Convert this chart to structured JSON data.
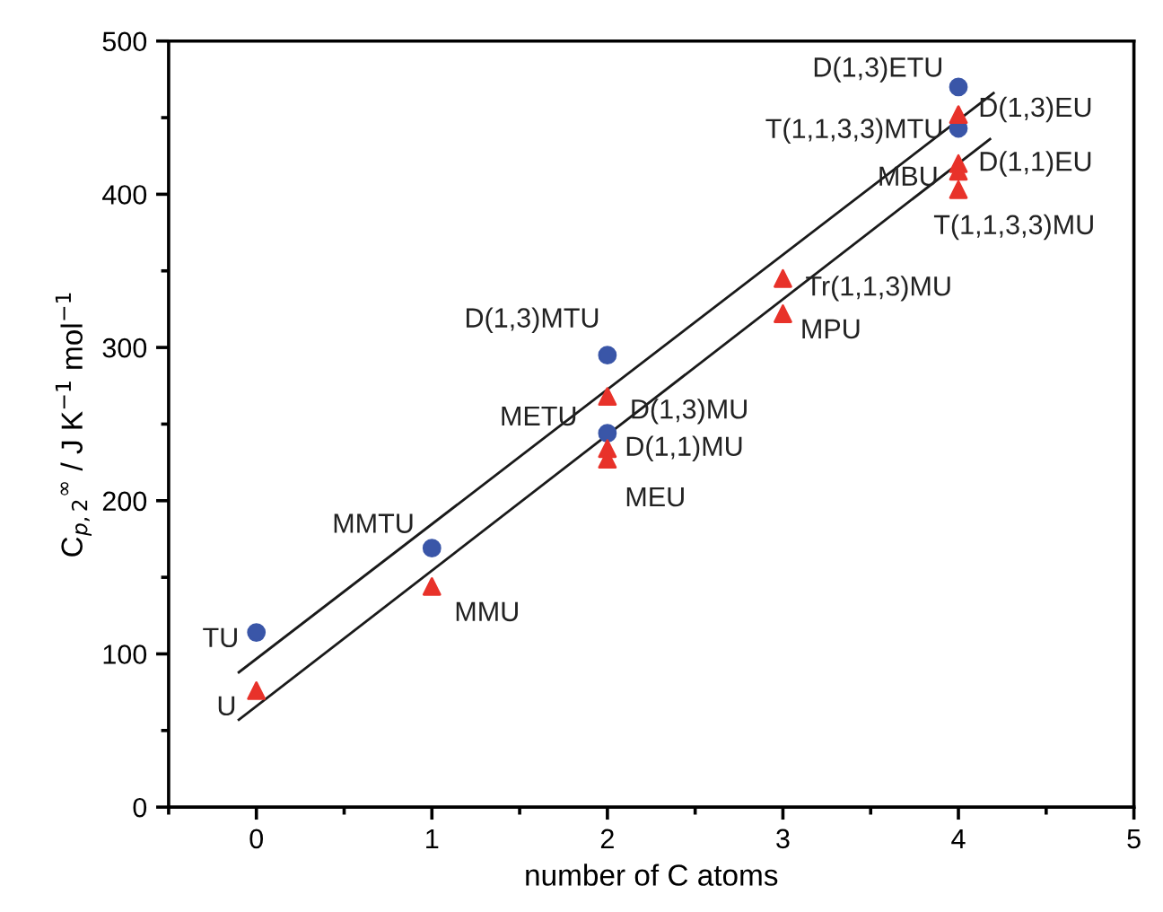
{
  "chart_data": {
    "type": "scatter",
    "xlabel": "number of C atoms",
    "ylabel": "C$_{p,2}$$^{∞}$ / J K$^{−1}$ mol$^{−1}$",
    "xlim": [
      -0.5,
      5
    ],
    "xticks": [
      0,
      1,
      2,
      3,
      4,
      5
    ],
    "ylim": [
      0,
      500
    ],
    "yticks": [
      0,
      100,
      200,
      300,
      400,
      500
    ],
    "grid": false,
    "legend": false,
    "series": [
      {
        "marker": "circle",
        "color": "#3a56a8",
        "x": [
          0,
          1,
          2,
          2,
          4,
          4
        ],
        "values": [
          114,
          169,
          244,
          295,
          470,
          443
        ]
      },
      {
        "marker": "triangle",
        "color": "#e8322a",
        "x": [
          0,
          1,
          2,
          2,
          2,
          3,
          3,
          4,
          4,
          4,
          4
        ],
        "values": [
          76,
          144,
          268,
          234,
          227,
          322,
          345,
          452,
          420,
          415,
          403
        ]
      },
      {
        "type": "line",
        "color": "#1a1a1a",
        "x": [
          -0.1,
          4.2
        ],
        "values": [
          88,
          466
        ]
      },
      {
        "type": "line",
        "color": "#1a1a1a",
        "x": [
          -0.1,
          4.18
        ],
        "values": [
          57,
          436
        ]
      }
    ],
    "annotations": [
      {
        "text": "TU",
        "x": 0,
        "y": 114
      },
      {
        "text": "MMTU",
        "x": 1,
        "y": 169
      },
      {
        "text": "METU",
        "x": 2,
        "y": 244
      },
      {
        "text": "D(1,3)MTU",
        "x": 2,
        "y": 295
      },
      {
        "text": "D(1,3)ETU",
        "x": 4,
        "y": 470
      },
      {
        "text": "T(1,1,3,3)MTU",
        "x": 4,
        "y": 443
      },
      {
        "text": "U",
        "x": 0,
        "y": 76
      },
      {
        "text": "MMU",
        "x": 1,
        "y": 144
      },
      {
        "text": "D(1,3)MU",
        "x": 2,
        "y": 268
      },
      {
        "text": "D(1,1)MU",
        "x": 2,
        "y": 234
      },
      {
        "text": "MEU",
        "x": 2,
        "y": 227
      },
      {
        "text": "MPU",
        "x": 3,
        "y": 322
      },
      {
        "text": "Tr(1,1,3)MU",
        "x": 3,
        "y": 345
      },
      {
        "text": "D(1,3)EU",
        "x": 4,
        "y": 452
      },
      {
        "text": "MBU",
        "x": 4,
        "y": 420
      },
      {
        "text": "D(1,1)EU",
        "x": 4,
        "y": 415
      },
      {
        "text": "T(1,1,3,3)MU",
        "x": 4,
        "y": 403
      }
    ]
  }
}
